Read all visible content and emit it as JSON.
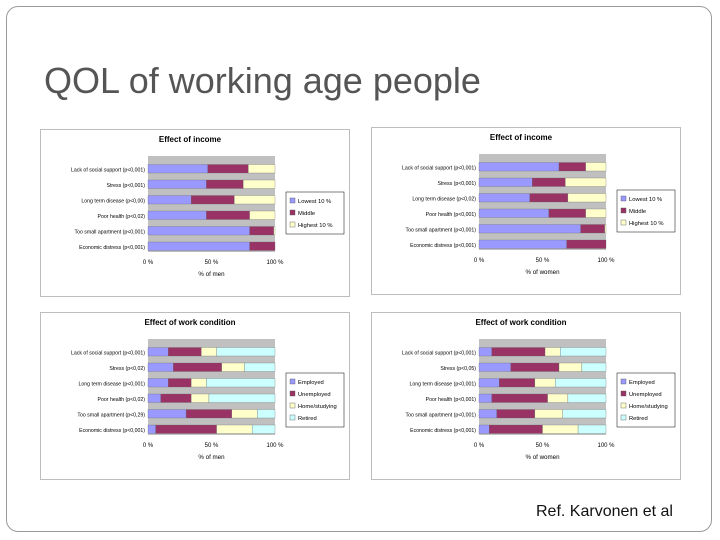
{
  "slide": {
    "title": "QOL of working age people",
    "reference": "Ref. Karvonen et al"
  },
  "chart_data": [
    {
      "type": "bar",
      "stacked": "percent",
      "orientation": "horizontal",
      "title": "Effect of income",
      "xlabel": "% of men",
      "categories": [
        "Lack of social support (p<0,001)",
        "Stress (p<0,001)",
        "Long term disease (p<0,00)",
        "Poor health (p<0,02)",
        "Too small apartment (p<0,001)",
        "Economic distress (p<0,001)"
      ],
      "series": [
        {
          "name": "Lowest 10 %",
          "color": "#9999ff",
          "values": [
            47,
            46,
            34,
            46,
            80,
            80
          ]
        },
        {
          "name": "Middle",
          "color": "#993366",
          "values": [
            32,
            29,
            34,
            34,
            19,
            20
          ]
        },
        {
          "name": "Highest 10 %",
          "color": "#ffffcc",
          "values": [
            21,
            25,
            32,
            20,
            1,
            0
          ]
        }
      ],
      "xticks": [
        "0 %",
        "50 %",
        "100 %"
      ],
      "xlim": [
        0,
        100
      ],
      "legend": "right"
    },
    {
      "type": "bar",
      "stacked": "percent",
      "orientation": "horizontal",
      "title": "Effect of income",
      "xlabel": "% of women",
      "categories": [
        "Lack of social support (p<0,001)",
        "Stress (p<0,001)",
        "Long term disease (p<0,02)",
        "Poor health (p<0,001)",
        "Too small apartment (p<0,001)",
        "Economic distress (p<0,001)"
      ],
      "series": [
        {
          "name": "Lowest 10 %",
          "color": "#9999ff",
          "values": [
            63,
            42,
            40,
            55,
            80,
            69
          ]
        },
        {
          "name": "Middle",
          "color": "#993366",
          "values": [
            21,
            26,
            30,
            29,
            19,
            31
          ]
        },
        {
          "name": "Highest 10 %",
          "color": "#ffffcc",
          "values": [
            16,
            32,
            30,
            16,
            1,
            0
          ]
        }
      ],
      "xticks": [
        "0 %",
        "50 %",
        "100 %"
      ],
      "xlim": [
        0,
        100
      ],
      "legend": "right"
    },
    {
      "type": "bar",
      "stacked": "percent",
      "orientation": "horizontal",
      "title": "Effect of work condition",
      "xlabel": "% of men",
      "categories": [
        "Lack of social support (p<0,001)",
        "Stress (p<0,02)",
        "Long term disease (p<0,001)",
        "Poor health (p<0,02)",
        "Too small apartment (p<0,29)",
        "Economic distress (p<0,001)"
      ],
      "series": [
        {
          "name": "Employed",
          "color": "#9999ff",
          "values": [
            16,
            20,
            16,
            10,
            30,
            6
          ]
        },
        {
          "name": "Unemployed",
          "color": "#993366",
          "values": [
            26,
            38,
            18,
            24,
            36,
            48
          ]
        },
        {
          "name": "Home/studying",
          "color": "#ffffcc",
          "values": [
            12,
            18,
            12,
            14,
            20,
            28
          ]
        },
        {
          "name": "Retired",
          "color": "#ccffff",
          "values": [
            46,
            24,
            54,
            52,
            14,
            18
          ]
        }
      ],
      "xticks": [
        "0 %",
        "50 %",
        "100 %"
      ],
      "xlim": [
        0,
        100
      ],
      "legend": "right"
    },
    {
      "type": "bar",
      "stacked": "percent",
      "orientation": "horizontal",
      "title": "Effect of work condition",
      "xlabel": "% of women",
      "categories": [
        "Lack of social support (p<0,001)",
        "Stress (p<0,05)",
        "Long term disease (p<0,001)",
        "Poor health (p<0,001)",
        "Too small apartment (p<0,001)",
        "Economic distress (p<0,001)"
      ],
      "series": [
        {
          "name": "Employed",
          "color": "#9999ff",
          "values": [
            10,
            25,
            16,
            10,
            14,
            8
          ]
        },
        {
          "name": "Unemployed",
          "color": "#993366",
          "values": [
            42,
            38,
            28,
            44,
            30,
            42
          ]
        },
        {
          "name": "Home/studying",
          "color": "#ffffcc",
          "values": [
            12,
            18,
            16,
            16,
            22,
            28
          ]
        },
        {
          "name": "Retired",
          "color": "#ccffff",
          "values": [
            36,
            19,
            40,
            30,
            34,
            22
          ]
        }
      ],
      "xticks": [
        "0 %",
        "50 %",
        "100 %"
      ],
      "xlim": [
        0,
        100
      ],
      "legend": "right"
    }
  ]
}
